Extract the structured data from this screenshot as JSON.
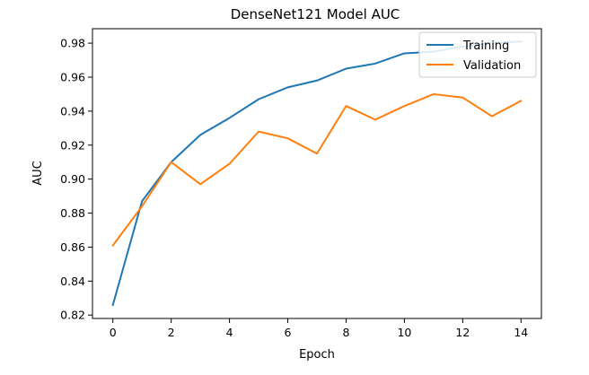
{
  "chart_data": {
    "type": "line",
    "title": "DenseNet121 Model AUC",
    "xlabel": "Epoch",
    "ylabel": "AUC",
    "xlim": [
      -0.7,
      14.7
    ],
    "ylim": [
      0.818,
      0.9885
    ],
    "xticks": [
      0,
      2,
      4,
      6,
      8,
      10,
      12,
      14
    ],
    "xtick_labels": [
      "0",
      "2",
      "4",
      "6",
      "8",
      "10",
      "12",
      "14"
    ],
    "yticks": [
      0.82,
      0.84,
      0.86,
      0.88,
      0.9,
      0.92,
      0.94,
      0.96,
      0.98
    ],
    "ytick_labels": [
      "0.82",
      "0.84",
      "0.86",
      "0.88",
      "0.90",
      "0.92",
      "0.94",
      "0.96",
      "0.98"
    ],
    "grid": false,
    "legend_position": "top-right",
    "x": [
      0,
      1,
      2,
      3,
      4,
      5,
      6,
      7,
      8,
      9,
      10,
      11,
      12,
      13,
      14
    ],
    "series": [
      {
        "name": "Training",
        "color": "#1f77b4",
        "values": [
          0.826,
          0.887,
          0.91,
          0.926,
          0.936,
          0.947,
          0.954,
          0.958,
          0.965,
          0.968,
          0.974,
          0.975,
          0.978,
          0.98,
          0.981
        ]
      },
      {
        "name": "Validation",
        "color": "#ff7f0e",
        "values": [
          0.861,
          0.884,
          0.91,
          0.897,
          0.909,
          0.928,
          0.924,
          0.915,
          0.943,
          0.935,
          0.943,
          0.95,
          0.948,
          0.937,
          0.946
        ]
      }
    ]
  }
}
